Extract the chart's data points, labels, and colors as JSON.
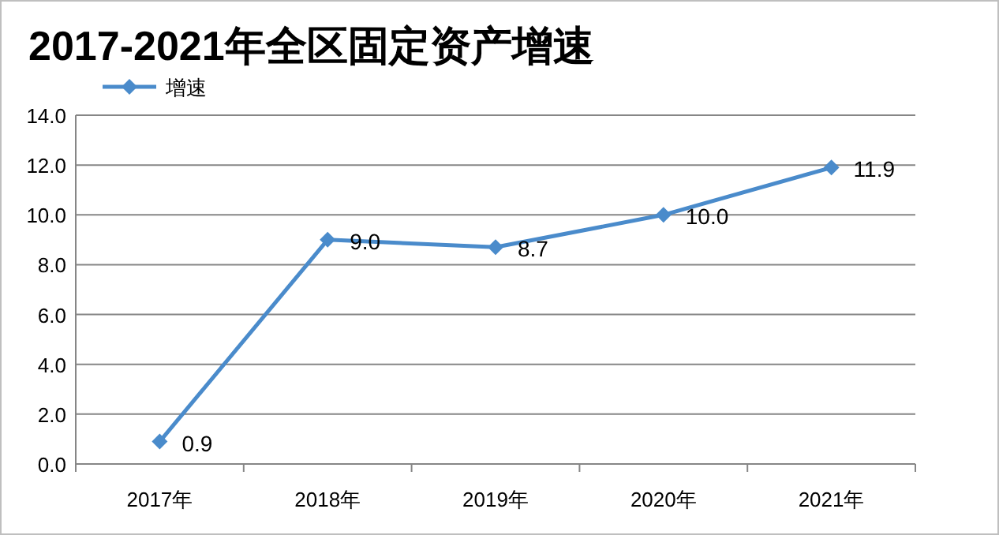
{
  "chart_data": {
    "type": "line",
    "title": "2017-2021年全区固定资产增速",
    "categories": [
      "2017年",
      "2018年",
      "2019年",
      "2020年",
      "2021年"
    ],
    "series": [
      {
        "name": "增速",
        "color": "#4a8bcb",
        "values": [
          0.9,
          9.0,
          8.7,
          10.0,
          11.9
        ],
        "value_labels": [
          "0.9",
          "9.0",
          "8.7",
          "10.0",
          "11.9"
        ]
      }
    ],
    "ylim": [
      0,
      14
    ],
    "yticks": [
      {
        "value": 0,
        "label": "0.0"
      },
      {
        "value": 2,
        "label": "2.0"
      },
      {
        "value": 4,
        "label": "4.0"
      },
      {
        "value": 6,
        "label": "6.0"
      },
      {
        "value": 8,
        "label": "8.0"
      },
      {
        "value": 10,
        "label": "10.0"
      },
      {
        "value": 12,
        "label": "12.0"
      },
      {
        "value": 14,
        "label": "14.0"
      }
    ],
    "grid": "y",
    "legend": "top left",
    "marker": "diamond",
    "line_style": "solid"
  }
}
